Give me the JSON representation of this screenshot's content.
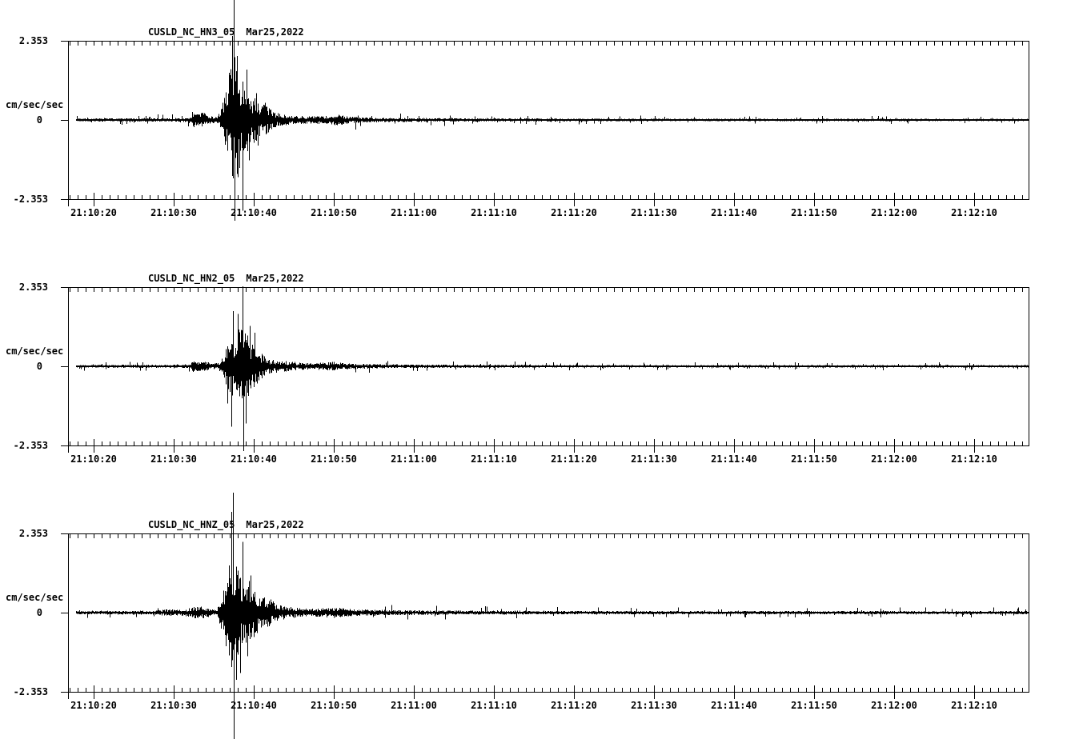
{
  "figure": {
    "background": "#ffffff",
    "trace_color": "#000000",
    "axis_color": "#000000"
  },
  "chart_data": [
    {
      "type": "line",
      "kind": "seismogram",
      "title": "CUSLD_NC_HN3_05",
      "date_label": "Mar25,2022",
      "ylabel": "cm/sec/sec",
      "ylim": [
        -2.353,
        2.353
      ],
      "ytick_labels": [
        "2.353",
        "0",
        "-2.353"
      ],
      "xtick_labels": [
        "21:10:20",
        "21:10:30",
        "21:10:40",
        "21:10:50",
        "21:11:00",
        "21:11:10",
        "21:11:20",
        "21:11:30",
        "21:11:40",
        "21:11:50",
        "21:12:00",
        "21:12:10"
      ],
      "xtick_times_sec": [
        20,
        30,
        40,
        50,
        60,
        70,
        80,
        90,
        100,
        110,
        120,
        130
      ],
      "x_range_sec": [
        16.8,
        136.8
      ],
      "x_minor_tick_interval_sec": 1,
      "x_major_tick_interval_sec": 10,
      "trace_start_sec": 17.8,
      "peak_pos_amplitude": 1.78,
      "peak_neg_amplitude": -1.5,
      "event_peak_time_sec": 37.5,
      "envelope": [
        [
          17.8,
          0.025
        ],
        [
          30,
          0.028
        ],
        [
          31.8,
          0.035
        ],
        [
          32.3,
          0.13
        ],
        [
          32.9,
          0.09
        ],
        [
          33.5,
          0.13
        ],
        [
          34.2,
          0.07
        ],
        [
          35.2,
          0.045
        ],
        [
          35.8,
          0.12
        ],
        [
          36.2,
          0.35
        ],
        [
          36.8,
          0.6
        ],
        [
          37.3,
          0.95
        ],
        [
          37.6,
          1.0
        ],
        [
          38.0,
          0.8
        ],
        [
          38.6,
          0.65
        ],
        [
          39.2,
          0.5
        ],
        [
          39.8,
          0.4
        ],
        [
          40.4,
          0.32
        ],
        [
          41.0,
          0.22
        ],
        [
          41.4,
          0.3
        ],
        [
          41.9,
          0.18
        ],
        [
          42.6,
          0.12
        ],
        [
          43.6,
          0.09
        ],
        [
          45,
          0.07
        ],
        [
          47,
          0.06
        ],
        [
          49.4,
          0.07
        ],
        [
          50.4,
          0.09
        ],
        [
          51.6,
          0.06
        ],
        [
          53,
          0.045
        ],
        [
          56,
          0.035
        ],
        [
          62,
          0.03
        ],
        [
          70,
          0.025
        ],
        [
          85,
          0.022
        ],
        [
          110,
          0.02
        ],
        [
          136.8,
          0.02
        ]
      ],
      "spikes": [
        [
          37.45,
          1.78
        ],
        [
          37.3,
          1.25
        ],
        [
          37.9,
          0.95
        ],
        [
          37.55,
          -1.5
        ],
        [
          38.55,
          -1.35
        ],
        [
          38.0,
          -0.85
        ],
        [
          36.9,
          0.7
        ],
        [
          39.1,
          0.75
        ],
        [
          39.35,
          -0.6
        ],
        [
          40.3,
          0.4
        ],
        [
          40.5,
          -0.38
        ]
      ]
    },
    {
      "type": "line",
      "kind": "seismogram",
      "title": "CUSLD_NC_HN2_05",
      "date_label": "Mar25,2022",
      "ylabel": "cm/sec/sec",
      "ylim": [
        -2.353,
        2.353
      ],
      "ytick_labels": [
        "2.353",
        "0",
        "-2.353"
      ],
      "xtick_labels": [
        "21:10:20",
        "21:10:30",
        "21:10:40",
        "21:10:50",
        "21:11:00",
        "21:11:10",
        "21:11:20",
        "21:11:30",
        "21:11:40",
        "21:11:50",
        "21:12:00",
        "21:12:10"
      ],
      "xtick_times_sec": [
        20,
        30,
        40,
        50,
        60,
        70,
        80,
        90,
        100,
        110,
        120,
        130
      ],
      "x_range_sec": [
        16.8,
        136.8
      ],
      "x_minor_tick_interval_sec": 1,
      "x_major_tick_interval_sec": 10,
      "trace_start_sec": 17.8,
      "peak_pos_amplitude": 1.19,
      "peak_neg_amplitude": -1.26,
      "event_peak_time_sec": 38.6,
      "envelope": [
        [
          17.8,
          0.022
        ],
        [
          30,
          0.025
        ],
        [
          31.9,
          0.03
        ],
        [
          32.4,
          0.09
        ],
        [
          33.1,
          0.07
        ],
        [
          33.8,
          0.09
        ],
        [
          34.6,
          0.05
        ],
        [
          35.4,
          0.04
        ],
        [
          36.0,
          0.12
        ],
        [
          36.5,
          0.3
        ],
        [
          37.1,
          0.45
        ],
        [
          37.7,
          0.55
        ],
        [
          38.3,
          0.6
        ],
        [
          38.8,
          0.55
        ],
        [
          39.4,
          0.45
        ],
        [
          40.0,
          0.35
        ],
        [
          40.6,
          0.25
        ],
        [
          41.2,
          0.18
        ],
        [
          41.7,
          0.14
        ],
        [
          42.4,
          0.11
        ],
        [
          43.4,
          0.09
        ],
        [
          45,
          0.07
        ],
        [
          47,
          0.05
        ],
        [
          48.9,
          0.06
        ],
        [
          49.9,
          0.08
        ],
        [
          51,
          0.055
        ],
        [
          53,
          0.04
        ],
        [
          57,
          0.03
        ],
        [
          65,
          0.025
        ],
        [
          85,
          0.02
        ],
        [
          136.8,
          0.02
        ]
      ],
      "spikes": [
        [
          38.55,
          1.19
        ],
        [
          38.7,
          -1.26
        ],
        [
          37.35,
          0.82
        ],
        [
          37.2,
          -0.9
        ],
        [
          38.0,
          0.78
        ],
        [
          38.95,
          -0.85
        ],
        [
          39.45,
          0.6
        ],
        [
          36.7,
          -0.55
        ],
        [
          40.1,
          0.5
        ]
      ]
    },
    {
      "type": "line",
      "kind": "seismogram",
      "title": "CUSLD_NC_HNZ_05",
      "date_label": "Mar25,2022",
      "ylabel": "cm/sec/sec",
      "ylim": [
        -2.353,
        2.353
      ],
      "ytick_labels": [
        "2.353",
        "0",
        "-2.353"
      ],
      "xtick_labels": [
        "21:10:20",
        "21:10:30",
        "21:10:40",
        "21:10:50",
        "21:11:00",
        "21:11:10",
        "21:11:20",
        "21:11:30",
        "21:11:40",
        "21:11:50",
        "21:12:00",
        "21:12:10"
      ],
      "xtick_times_sec": [
        20,
        30,
        40,
        50,
        60,
        70,
        80,
        90,
        100,
        110,
        120,
        130
      ],
      "x_range_sec": [
        16.8,
        136.8
      ],
      "x_minor_tick_interval_sec": 1,
      "x_major_tick_interval_sec": 10,
      "trace_start_sec": 17.8,
      "peak_pos_amplitude": 1.83,
      "peak_neg_amplitude": -2.09,
      "event_peak_time_sec": 37.4,
      "envelope": [
        [
          17.8,
          0.028
        ],
        [
          27,
          0.03
        ],
        [
          29.8,
          0.055
        ],
        [
          30.8,
          0.045
        ],
        [
          32.2,
          0.08
        ],
        [
          33.0,
          0.1
        ],
        [
          33.8,
          0.09
        ],
        [
          34.6,
          0.055
        ],
        [
          35.4,
          0.05
        ],
        [
          36.0,
          0.3
        ],
        [
          36.6,
          0.55
        ],
        [
          37.1,
          0.85
        ],
        [
          37.5,
          1.0
        ],
        [
          37.9,
          0.8
        ],
        [
          38.5,
          0.6
        ],
        [
          39.1,
          0.5
        ],
        [
          39.7,
          0.5
        ],
        [
          40.4,
          0.33
        ],
        [
          41.0,
          0.24
        ],
        [
          41.6,
          0.28
        ],
        [
          42.3,
          0.18
        ],
        [
          43.2,
          0.12
        ],
        [
          44.6,
          0.09
        ],
        [
          46.5,
          0.065
        ],
        [
          48.6,
          0.07
        ],
        [
          50,
          0.09
        ],
        [
          51.8,
          0.06
        ],
        [
          54,
          0.05
        ],
        [
          58,
          0.04
        ],
        [
          63,
          0.035
        ],
        [
          70,
          0.03
        ],
        [
          90,
          0.026
        ],
        [
          136.8,
          0.025
        ]
      ],
      "spikes": [
        [
          37.35,
          1.83
        ],
        [
          37.5,
          -2.09
        ],
        [
          37.2,
          1.5
        ],
        [
          37.75,
          -1.0
        ],
        [
          38.55,
          1.05
        ],
        [
          38.3,
          -0.9
        ],
        [
          36.85,
          0.7
        ],
        [
          39.2,
          -0.65
        ],
        [
          39.6,
          0.55
        ],
        [
          36.5,
          -0.5
        ]
      ]
    }
  ]
}
